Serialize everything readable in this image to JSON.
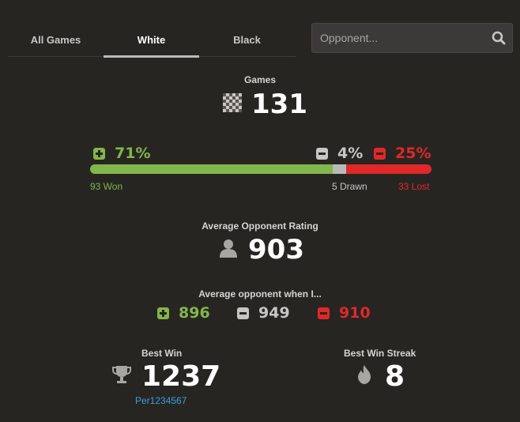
{
  "tabs": [
    {
      "label": "All Games",
      "active": false
    },
    {
      "label": "White",
      "active": true
    },
    {
      "label": "Black",
      "active": false
    }
  ],
  "search": {
    "placeholder": "Opponent...",
    "value": ""
  },
  "games": {
    "label": "Games",
    "value": "131"
  },
  "results": {
    "win_pct": "71%",
    "draw_pct": "4%",
    "loss_pct": "25%",
    "won": "93 Won",
    "drawn": "5 Drawn",
    "lost": "33 Lost",
    "bar_fractions": {
      "win": 0.71,
      "draw": 0.04,
      "loss": 0.25
    }
  },
  "avg_rating": {
    "label": "Average Opponent Rating",
    "value": "903"
  },
  "avg_when": {
    "label": "Average opponent when I...",
    "win": "896",
    "draw": "949",
    "loss": "910"
  },
  "best_win": {
    "label": "Best Win",
    "value": "1237",
    "opponent": "Per1234567"
  },
  "best_streak": {
    "label": "Best Win Streak",
    "value": "8"
  },
  "colors": {
    "win": "#81b64c",
    "draw": "#bababa",
    "loss": "#e02828",
    "link": "#3d9ed8",
    "bg": "#272522"
  }
}
